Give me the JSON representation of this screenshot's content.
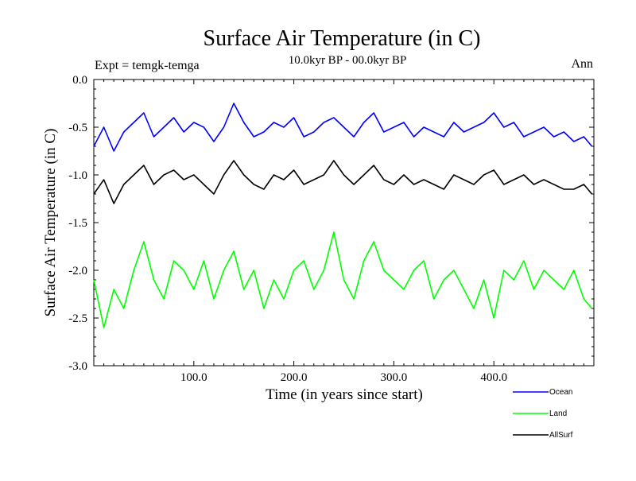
{
  "chart_data": {
    "type": "line",
    "title": "Surface Air Temperature (in C)",
    "subtitle": "10.0kyr BP - 00.0kyr BP",
    "left_label": "Expt = temgk-temga",
    "right_label": "Ann",
    "xlabel": "Time (in years since start)",
    "ylabel": "Surface Air Temperature (in C)",
    "xlim": [
      0,
      500
    ],
    "ylim": [
      -3.0,
      0.0
    ],
    "x_ticks": [
      100,
      200,
      300,
      400
    ],
    "x_tick_labels": [
      "100.0",
      "200.0",
      "300.0",
      "400.0"
    ],
    "y_ticks": [
      0.0,
      -0.5,
      -1.0,
      -1.5,
      -2.0,
      -2.5,
      -3.0
    ],
    "y_tick_labels": [
      "0.0",
      "-0.5",
      "-1.0",
      "-1.5",
      "-2.0",
      "-2.5",
      "-3.0"
    ],
    "grid": false,
    "legend_position": "bottom-right",
    "series": [
      {
        "name": "Ocean",
        "color": "#0000ff",
        "x": [
          0,
          10,
          20,
          30,
          40,
          50,
          60,
          70,
          80,
          90,
          100,
          110,
          120,
          130,
          140,
          150,
          160,
          170,
          180,
          190,
          200,
          210,
          220,
          230,
          240,
          250,
          260,
          270,
          280,
          290,
          300,
          310,
          320,
          330,
          340,
          350,
          360,
          370,
          380,
          390,
          400,
          410,
          420,
          430,
          440,
          450,
          460,
          470,
          480,
          490,
          498
        ],
        "values": [
          -0.7,
          -0.5,
          -0.75,
          -0.55,
          -0.45,
          -0.35,
          -0.6,
          -0.5,
          -0.4,
          -0.55,
          -0.45,
          -0.5,
          -0.65,
          -0.5,
          -0.25,
          -0.45,
          -0.6,
          -0.55,
          -0.45,
          -0.5,
          -0.4,
          -0.6,
          -0.55,
          -0.45,
          -0.4,
          -0.5,
          -0.6,
          -0.45,
          -0.35,
          -0.55,
          -0.5,
          -0.45,
          -0.6,
          -0.5,
          -0.55,
          -0.6,
          -0.45,
          -0.55,
          -0.5,
          -0.45,
          -0.35,
          -0.5,
          -0.45,
          -0.6,
          -0.55,
          -0.5,
          -0.6,
          -0.55,
          -0.65,
          -0.6,
          -0.7
        ]
      },
      {
        "name": "Land",
        "color": "#00ff00",
        "x": [
          0,
          10,
          20,
          30,
          40,
          50,
          60,
          70,
          80,
          90,
          100,
          110,
          120,
          130,
          140,
          150,
          160,
          170,
          180,
          190,
          200,
          210,
          220,
          230,
          240,
          250,
          260,
          270,
          280,
          290,
          300,
          310,
          320,
          330,
          340,
          350,
          360,
          370,
          380,
          390,
          400,
          410,
          420,
          430,
          440,
          450,
          460,
          470,
          480,
          490,
          498
        ],
        "values": [
          -2.1,
          -2.6,
          -2.2,
          -2.4,
          -2.0,
          -1.7,
          -2.1,
          -2.3,
          -1.9,
          -2.0,
          -2.2,
          -1.9,
          -2.3,
          -2.0,
          -1.8,
          -2.2,
          -2.0,
          -2.4,
          -2.1,
          -2.3,
          -2.0,
          -1.9,
          -2.2,
          -2.0,
          -1.6,
          -2.1,
          -2.3,
          -1.9,
          -1.7,
          -2.0,
          -2.1,
          -2.2,
          -2.0,
          -1.9,
          -2.3,
          -2.1,
          -2.0,
          -2.2,
          -2.4,
          -2.1,
          -2.5,
          -2.0,
          -2.1,
          -1.9,
          -2.2,
          -2.0,
          -2.1,
          -2.2,
          -2.0,
          -2.3,
          -2.4
        ]
      },
      {
        "name": "AllSurf",
        "color": "#000000",
        "x": [
          0,
          10,
          20,
          30,
          40,
          50,
          60,
          70,
          80,
          90,
          100,
          110,
          120,
          130,
          140,
          150,
          160,
          170,
          180,
          190,
          200,
          210,
          220,
          230,
          240,
          250,
          260,
          270,
          280,
          290,
          300,
          310,
          320,
          330,
          340,
          350,
          360,
          370,
          380,
          390,
          400,
          410,
          420,
          430,
          440,
          450,
          460,
          470,
          480,
          490,
          498
        ],
        "values": [
          -1.2,
          -1.05,
          -1.3,
          -1.1,
          -1.0,
          -0.9,
          -1.1,
          -1.0,
          -0.95,
          -1.05,
          -1.0,
          -1.1,
          -1.2,
          -1.0,
          -0.85,
          -1.0,
          -1.1,
          -1.15,
          -1.0,
          -1.05,
          -0.95,
          -1.1,
          -1.05,
          -1.0,
          -0.85,
          -1.0,
          -1.1,
          -1.0,
          -0.9,
          -1.05,
          -1.1,
          -1.0,
          -1.1,
          -1.05,
          -1.1,
          -1.15,
          -1.0,
          -1.05,
          -1.1,
          -1.0,
          -0.95,
          -1.1,
          -1.05,
          -1.0,
          -1.1,
          -1.05,
          -1.1,
          -1.15,
          -1.15,
          -1.1,
          -1.2
        ]
      }
    ]
  }
}
